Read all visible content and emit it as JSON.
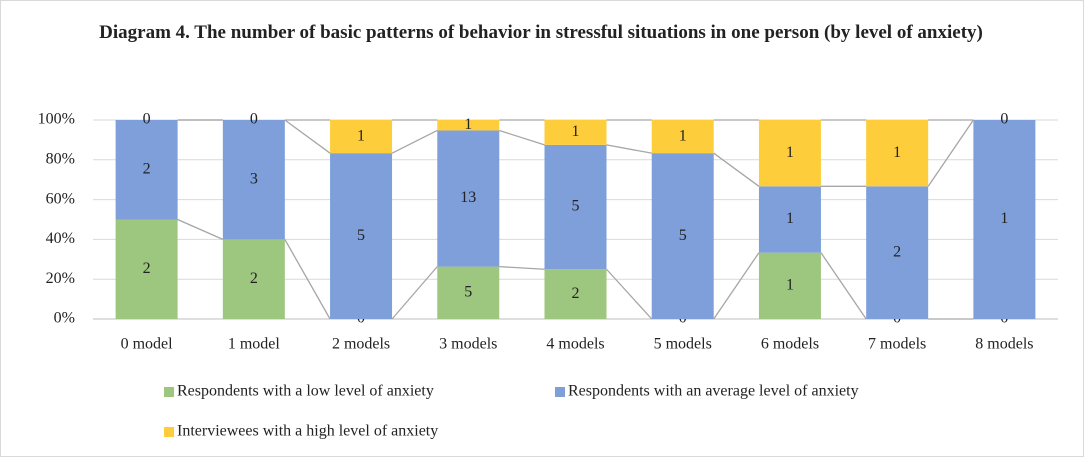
{
  "chart_data": {
    "type": "bar",
    "stacked": "percent",
    "title": "Diagram 4. The number of basic patterns of behavior in stressful situations in one person (by level of anxiety)",
    "categories": [
      "0 model",
      "1 model",
      "2 models",
      "3 models",
      "4 models",
      "5 models",
      "6 models",
      "7 models",
      "8 models"
    ],
    "series": [
      {
        "name": "Respondents with a low level of anxiety",
        "color": "#9dc67f",
        "values": [
          2,
          2,
          0,
          5,
          2,
          0,
          1,
          0,
          0
        ]
      },
      {
        "name": "Respondents with an average level of anxiety",
        "color": "#7e9fda",
        "values": [
          2,
          3,
          5,
          13,
          5,
          5,
          1,
          2,
          1
        ]
      },
      {
        "name": "Interviewees with a high level of anxiety",
        "color": "#fecd3c",
        "values": [
          0,
          0,
          1,
          1,
          1,
          1,
          1,
          1,
          0
        ]
      }
    ],
    "ylim": [
      0,
      100
    ],
    "yticks": [
      {
        "value": 0,
        "label": "0%"
      },
      {
        "value": 20,
        "label": "20%"
      },
      {
        "value": 40,
        "label": "40%"
      },
      {
        "value": 60,
        "label": "60%"
      },
      {
        "value": 80,
        "label": "80%"
      },
      {
        "value": 100,
        "label": "100%"
      }
    ],
    "grid": true,
    "series_lines": true,
    "legend": "bottom"
  }
}
